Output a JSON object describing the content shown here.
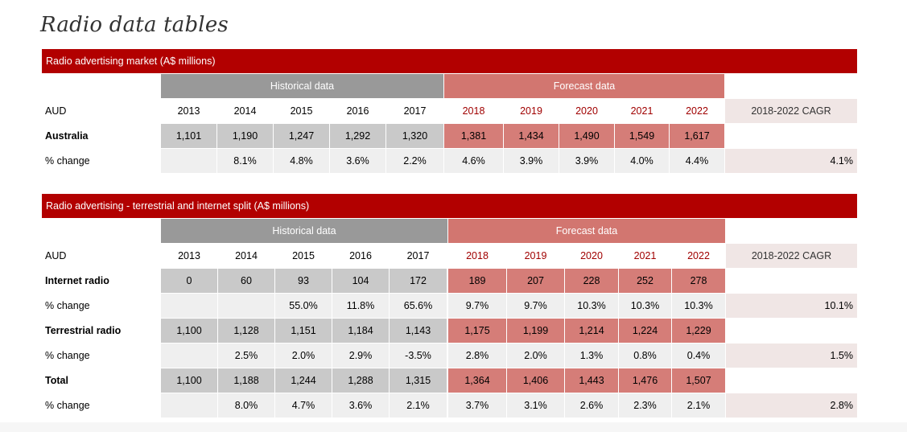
{
  "page_title": "Radio data tables",
  "table1": {
    "title": "Radio advertising market (A$ millions)",
    "historical_label": "Historical data",
    "forecast_label": "Forecast data",
    "unit_label": "AUD",
    "cagr_label": "2018-2022 CAGR",
    "years": [
      "2013",
      "2014",
      "2015",
      "2016",
      "2017",
      "2018",
      "2019",
      "2020",
      "2021",
      "2022"
    ],
    "rows": [
      {
        "label": "Australia",
        "type": "value",
        "values": [
          "1,101",
          "1,190",
          "1,247",
          "1,292",
          "1,320",
          "1,381",
          "1,434",
          "1,490",
          "1,549",
          "1,617"
        ],
        "cagr": ""
      },
      {
        "label": "% change",
        "type": "pct",
        "values": [
          "",
          "8.1%",
          "4.8%",
          "3.6%",
          "2.2%",
          "4.6%",
          "3.9%",
          "3.9%",
          "4.0%",
          "4.4%"
        ],
        "cagr": "4.1%"
      }
    ]
  },
  "table2": {
    "title": "Radio advertising - terrestrial and internet split (A$ millions)",
    "historical_label": "Historical data",
    "forecast_label": "Forecast data",
    "unit_label": "AUD",
    "cagr_label": "2018-2022 CAGR",
    "years": [
      "2013",
      "2014",
      "2015",
      "2016",
      "2017",
      "2018",
      "2019",
      "2020",
      "2021",
      "2022"
    ],
    "rows": [
      {
        "label": "Internet radio",
        "type": "value",
        "values": [
          "0",
          "60",
          "93",
          "104",
          "172",
          "189",
          "207",
          "228",
          "252",
          "278"
        ],
        "cagr": ""
      },
      {
        "label": "% change",
        "type": "pct",
        "values": [
          "",
          "",
          "55.0%",
          "11.8%",
          "65.6%",
          "9.7%",
          "9.7%",
          "10.3%",
          "10.3%",
          "10.3%"
        ],
        "cagr": "10.1%"
      },
      {
        "label": "Terrestrial radio",
        "type": "value",
        "values": [
          "1,100",
          "1,128",
          "1,151",
          "1,184",
          "1,143",
          "1,175",
          "1,199",
          "1,214",
          "1,224",
          "1,229"
        ],
        "cagr": ""
      },
      {
        "label": "% change",
        "type": "pct",
        "values": [
          "",
          "2.5%",
          "2.0%",
          "2.9%",
          "-3.5%",
          "2.8%",
          "2.0%",
          "1.3%",
          "0.8%",
          "0.4%"
        ],
        "cagr": "1.5%"
      },
      {
        "label": "Total",
        "type": "value",
        "values": [
          "1,100",
          "1,188",
          "1,244",
          "1,288",
          "1,315",
          "1,364",
          "1,406",
          "1,443",
          "1,476",
          "1,507"
        ],
        "cagr": ""
      },
      {
        "label": "% change",
        "type": "pct",
        "values": [
          "",
          "8.0%",
          "4.7%",
          "3.6%",
          "2.1%",
          "3.7%",
          "3.1%",
          "2.6%",
          "2.3%",
          "2.1%"
        ],
        "cagr": "2.8%"
      }
    ]
  }
}
